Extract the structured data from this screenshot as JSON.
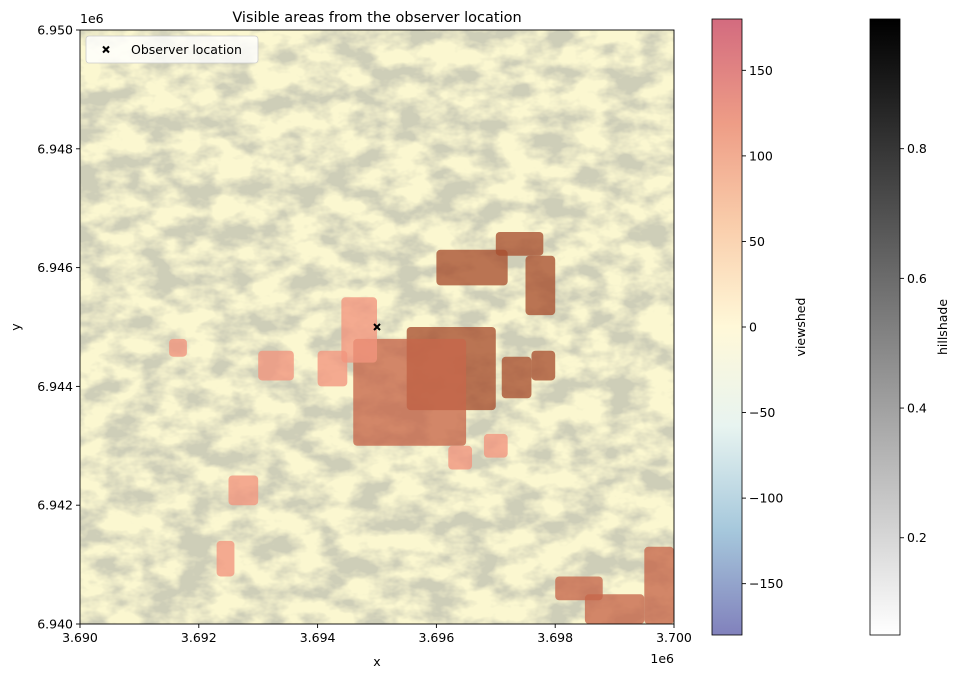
{
  "chart_data": {
    "type": "heatmap",
    "title": "Visible areas from the observer location",
    "xlabel": "x",
    "ylabel": "y",
    "x_offset_label": "1e6",
    "y_offset_label": "1e6",
    "xlim": [
      3.69,
      3.7
    ],
    "ylim": [
      6.94,
      6.95
    ],
    "x_ticks": [
      3.69,
      3.692,
      3.694,
      3.696,
      3.698,
      3.7
    ],
    "x_tick_labels": [
      "3.690",
      "3.692",
      "3.694",
      "3.696",
      "3.698",
      "3.700"
    ],
    "y_ticks": [
      6.94,
      6.942,
      6.944,
      6.946,
      6.948,
      6.95
    ],
    "y_tick_labels": [
      "6.940",
      "6.942",
      "6.944",
      "6.946",
      "6.948",
      "6.950"
    ],
    "observer": {
      "x": 3.695,
      "y": 6.945,
      "label": "Observer location"
    },
    "legend": {
      "placement": "top-left",
      "entries": [
        "Observer location"
      ]
    },
    "grid": false,
    "colorbars": [
      {
        "label": "viewshed",
        "cmap": "RdYlBu_r",
        "range": [
          -180,
          180
        ],
        "ticks": [
          150,
          100,
          50,
          0,
          -50,
          -100,
          -150
        ],
        "tick_labels": [
          "150",
          "100",
          "50",
          "0",
          "−50",
          "−100",
          "−150"
        ],
        "colors": [
          "#d36b7f",
          "#ee9d86",
          "#f9ccaa",
          "#fff8d8",
          "#e8f4f0",
          "#a6c8dc",
          "#8181bc"
        ]
      },
      {
        "label": "hillshade",
        "cmap": "Greys",
        "range": [
          0.05,
          1.0
        ],
        "ticks": [
          0.8,
          0.6,
          0.4,
          0.2
        ],
        "tick_labels": [
          "0.8",
          "0.6",
          "0.4",
          "0.2"
        ],
        "colors": [
          "#000000",
          "#ffffff"
        ]
      }
    ],
    "visible_patches": [
      {
        "x": [
          3.6955,
          3.697
        ],
        "y": [
          6.9436,
          6.945
        ],
        "value": 150
      },
      {
        "x": [
          3.6946,
          3.6965
        ],
        "y": [
          6.943,
          6.9448
        ],
        "value": 120
      },
      {
        "x": [
          3.6944,
          3.695
        ],
        "y": [
          6.9444,
          6.9455
        ],
        "value": 110
      },
      {
        "x": [
          3.696,
          3.6972
        ],
        "y": [
          6.9457,
          6.9463
        ],
        "value": 150
      },
      {
        "x": [
          3.697,
          3.6978
        ],
        "y": [
          6.9462,
          6.9466
        ],
        "value": 150
      },
      {
        "x": [
          3.6975,
          3.698
        ],
        "y": [
          6.9452,
          6.9462
        ],
        "value": 140
      },
      {
        "x": [
          3.6971,
          3.6976
        ],
        "y": [
          6.9438,
          6.9445
        ],
        "value": 150
      },
      {
        "x": [
          3.6976,
          3.698
        ],
        "y": [
          6.9441,
          6.9446
        ],
        "value": 150
      },
      {
        "x": [
          3.6968,
          3.6972
        ],
        "y": [
          6.9428,
          6.9432
        ],
        "value": 110
      },
      {
        "x": [
          3.6962,
          3.6966
        ],
        "y": [
          6.9426,
          6.943
        ],
        "value": 100
      },
      {
        "x": [
          3.694,
          3.6945
        ],
        "y": [
          6.944,
          6.9446
        ],
        "value": 100
      },
      {
        "x": [
          3.693,
          3.6936
        ],
        "y": [
          6.9441,
          6.9446
        ],
        "value": 100
      },
      {
        "x": [
          3.6915,
          3.6918
        ],
        "y": [
          6.9445,
          6.9448
        ],
        "value": 90
      },
      {
        "x": [
          3.6925,
          3.693
        ],
        "y": [
          6.942,
          6.9425
        ],
        "value": 100
      },
      {
        "x": [
          3.6923,
          3.6926
        ],
        "y": [
          6.9408,
          6.9414
        ],
        "value": 100
      },
      {
        "x": [
          3.6985,
          3.6995
        ],
        "y": [
          6.94,
          6.9405
        ],
        "value": 130
      },
      {
        "x": [
          3.6995,
          3.7
        ],
        "y": [
          6.94,
          6.9413
        ],
        "value": 130
      },
      {
        "x": [
          3.698,
          3.6988
        ],
        "y": [
          6.9404,
          6.9408
        ],
        "value": 120
      }
    ]
  }
}
